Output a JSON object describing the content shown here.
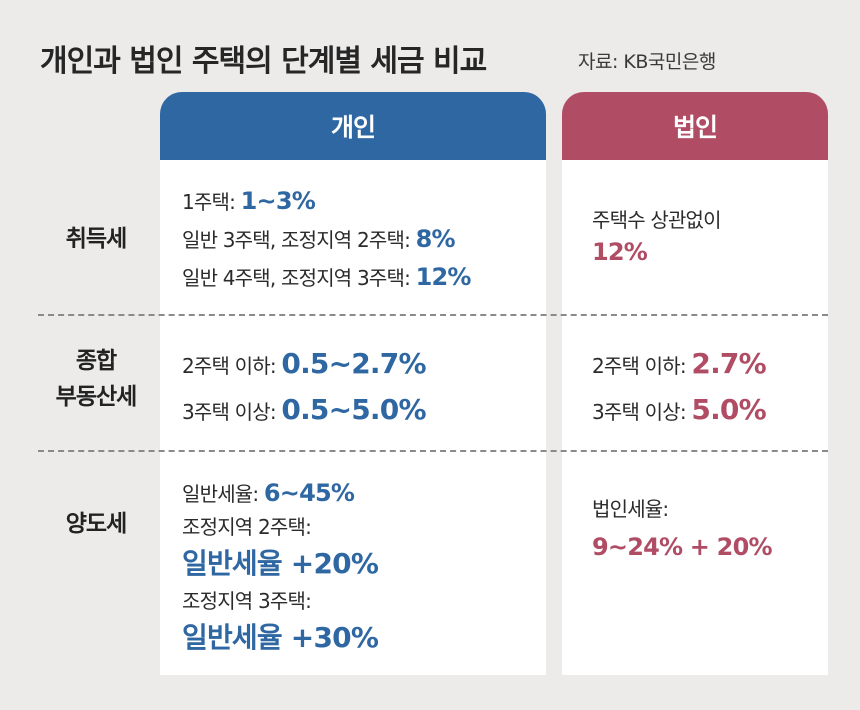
{
  "title": "개인과 법인 주택의 단계별 세금 비교",
  "source": "자료: KB국민은행",
  "headers": {
    "individual": "개인",
    "corporate": "법인"
  },
  "rows": {
    "acquisition": {
      "label": "취득세",
      "individual": [
        {
          "text": "1주택: ",
          "value": "1~3%"
        },
        {
          "text": "일반 3주택, 조정지역 2주택: ",
          "value": "8%"
        },
        {
          "text": "일반 4주택, 조정지역 3주택: ",
          "value": "12%"
        }
      ],
      "corporate": {
        "text": "주택수 상관없이",
        "value": "12%"
      }
    },
    "property": {
      "label_line1": "종합",
      "label_line2": "부동산세",
      "individual": [
        {
          "text": "2주택 이하: ",
          "value": "0.5~2.7%"
        },
        {
          "text": "3주택 이상: ",
          "value": "0.5~5.0%"
        }
      ],
      "corporate": [
        {
          "text": "2주택 이하: ",
          "value": "2.7%"
        },
        {
          "text": "3주택 이상: ",
          "value": "5.0%"
        }
      ]
    },
    "transfer": {
      "label": "양도세",
      "individual": {
        "general_text": "일반세율: ",
        "general_value": "6~45%",
        "adj2_text": "조정지역 2주택:",
        "adj2_value": "일반세율 +20%",
        "adj3_text": "조정지역 3주택:",
        "adj3_value": "일반세율 +30%"
      },
      "corporate": {
        "text": "법인세율:",
        "value": "9~24% + 20%"
      }
    }
  }
}
